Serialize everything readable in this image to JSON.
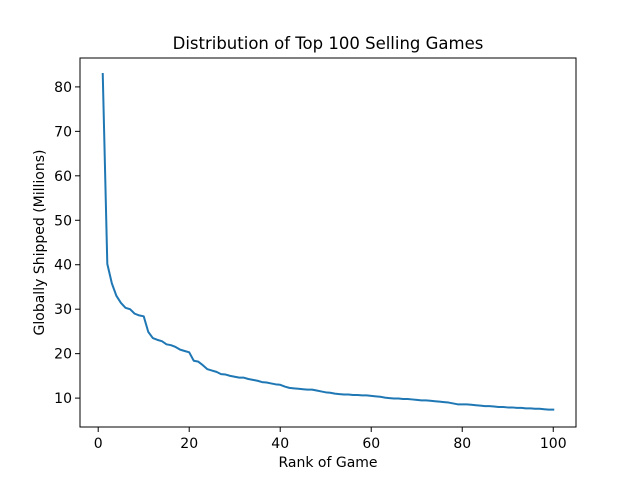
{
  "chart_data": {
    "type": "line",
    "title": "Distribution of Top 100 Selling Games",
    "xlabel": "Rank of Game",
    "ylabel": "Globally Shipped (Millions)",
    "xlim": [
      -4.0,
      105.0
    ],
    "ylim": [
      3.5,
      86.5
    ],
    "xticks": [
      0,
      20,
      40,
      60,
      80,
      100
    ],
    "yticks": [
      10,
      20,
      30,
      40,
      50,
      60,
      70,
      80
    ],
    "grid": false,
    "legend": "none",
    "series": [
      {
        "color": "#1f77b4",
        "x": [
          1,
          2,
          3,
          4,
          5,
          6,
          7,
          8,
          9,
          10,
          11,
          12,
          13,
          14,
          15,
          16,
          17,
          18,
          19,
          20,
          21,
          22,
          23,
          24,
          25,
          26,
          27,
          28,
          29,
          30,
          31,
          32,
          33,
          34,
          35,
          36,
          37,
          38,
          39,
          40,
          41,
          42,
          43,
          44,
          45,
          46,
          47,
          48,
          49,
          50,
          51,
          52,
          53,
          54,
          55,
          56,
          57,
          58,
          59,
          60,
          61,
          62,
          63,
          64,
          65,
          66,
          67,
          68,
          69,
          70,
          71,
          72,
          73,
          74,
          75,
          76,
          77,
          78,
          79,
          80,
          81,
          82,
          83,
          84,
          85,
          86,
          87,
          88,
          89,
          90,
          91,
          92,
          93,
          94,
          95,
          96,
          97,
          98,
          99,
          100
        ],
        "values": [
          82.9,
          40.2,
          35.8,
          33.0,
          31.4,
          30.3,
          30.0,
          29.0,
          28.6,
          28.4,
          24.9,
          23.5,
          23.1,
          22.8,
          22.1,
          21.9,
          21.5,
          20.9,
          20.6,
          20.3,
          18.4,
          18.2,
          17.4,
          16.5,
          16.2,
          15.9,
          15.4,
          15.3,
          15.0,
          14.8,
          14.6,
          14.6,
          14.3,
          14.1,
          13.9,
          13.6,
          13.5,
          13.3,
          13.1,
          13.0,
          12.6,
          12.3,
          12.2,
          12.1,
          12.0,
          11.9,
          11.9,
          11.7,
          11.5,
          11.3,
          11.2,
          11.0,
          10.9,
          10.8,
          10.8,
          10.7,
          10.7,
          10.6,
          10.6,
          10.5,
          10.4,
          10.3,
          10.1,
          10.0,
          9.9,
          9.9,
          9.8,
          9.8,
          9.7,
          9.6,
          9.5,
          9.5,
          9.4,
          9.3,
          9.2,
          9.1,
          9.0,
          8.8,
          8.6,
          8.6,
          8.6,
          8.5,
          8.4,
          8.3,
          8.2,
          8.2,
          8.1,
          8.0,
          8.0,
          7.9,
          7.9,
          7.8,
          7.8,
          7.7,
          7.7,
          7.6,
          7.6,
          7.5,
          7.4,
          7.4
        ]
      }
    ]
  }
}
